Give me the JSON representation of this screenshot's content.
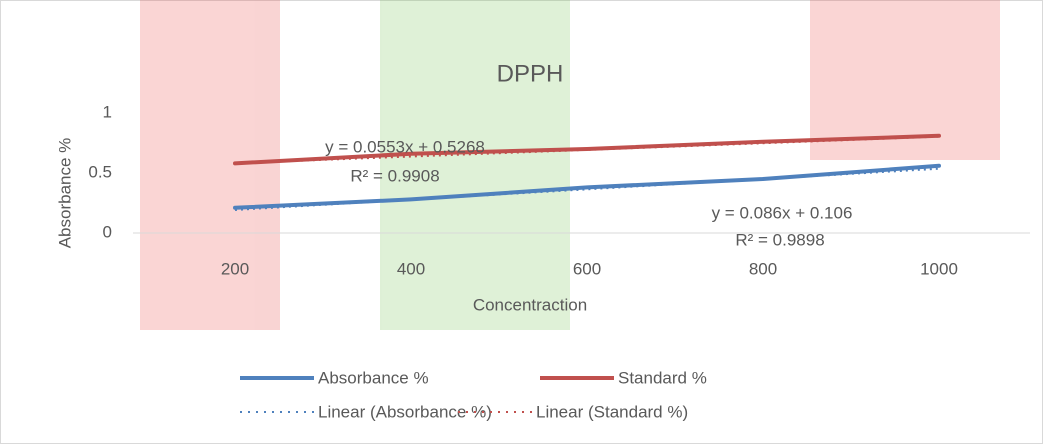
{
  "chart_data": {
    "type": "line",
    "title": "DPPH",
    "x_label": "Concentraction",
    "y_label": "Absorbance %",
    "categories": [
      "200",
      "400",
      "600",
      "800",
      "1000"
    ],
    "series": [
      {
        "name": "Absorbance %",
        "color": "#4f81bd",
        "values": [
          0.21,
          0.28,
          0.38,
          0.45,
          0.56
        ]
      },
      {
        "name": "Standard %",
        "color": "#c0504d",
        "values": [
          0.58,
          0.66,
          0.7,
          0.76,
          0.81
        ]
      }
    ],
    "trendlines": [
      {
        "name": "Linear (Absorbance %)",
        "color": "#4f81bd",
        "slope": 0.086,
        "intercept": 0.106,
        "equation": "y = 0.086x + 0.106",
        "r2": "R² = 0.9898"
      },
      {
        "name": "Linear (Standard %)",
        "color": "#c0504d",
        "slope": 0.0553,
        "intercept": 0.5268,
        "equation": "y = 0.0553x + 0.5268",
        "r2": "R² = 0.9908"
      }
    ],
    "ylim": [
      0,
      1.2
    ],
    "yticks": [
      0,
      0.5,
      1
    ],
    "legend": "bottom"
  }
}
